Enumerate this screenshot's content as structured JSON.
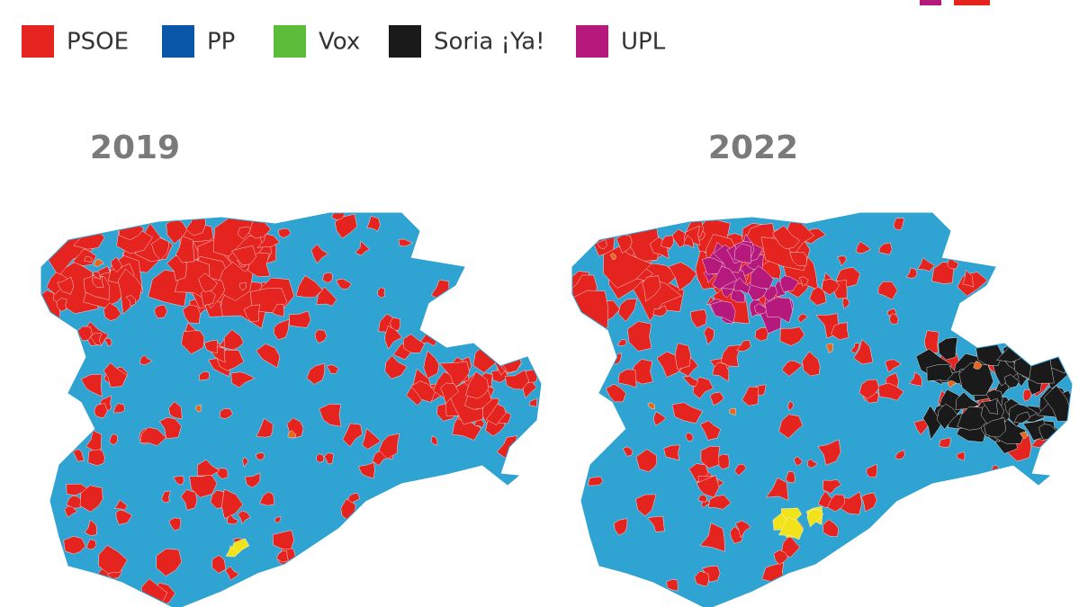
{
  "legend": [
    {
      "name": "PSOE",
      "color": "#e52420"
    },
    {
      "name": "PP",
      "color": "#0a56a8"
    },
    {
      "name": "Vox",
      "color": "#5cbd3a"
    },
    {
      "name": "Soria ¡Ya!",
      "color": "#1a1a1a"
    },
    {
      "name": "UPL",
      "color": "#b5197c"
    }
  ],
  "maps": [
    {
      "title": "2019"
    },
    {
      "title": "2022"
    }
  ]
}
